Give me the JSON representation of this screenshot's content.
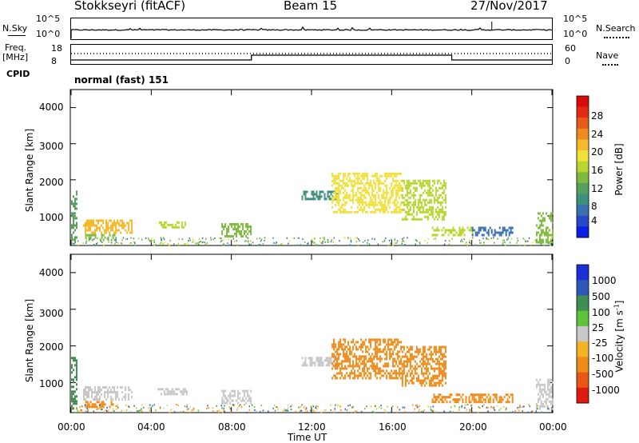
{
  "header": {
    "station": "Stokkseyri (fitACF)",
    "beam": "Beam 15",
    "date": "27/Nov/2017"
  },
  "strip": {
    "nsky_label": "N.Sky",
    "nsky_ticks": [
      "10^5",
      "10^0"
    ],
    "nsearch_label": "N.Search",
    "nsearch_ticks": [
      "10^5",
      "10^0"
    ],
    "freq_label": "Freq.",
    "freq_unit": "[MHz]",
    "freq_ticks": [
      "18",
      "8"
    ],
    "nave_label": "Nave",
    "nave_ticks": [
      "60",
      "0"
    ],
    "cpid_label": "CPID",
    "cpid_value": "normal (fast) 151"
  },
  "chart_data": [
    {
      "type": "heatmap",
      "name": "power",
      "ylabel": "Slant Range [km]",
      "ylim": [
        180,
        4500
      ],
      "yticks": [
        "4000",
        "3000",
        "2000",
        "1000"
      ],
      "ytick_values": [
        4000,
        3000,
        2000,
        1000
      ],
      "xlabel": "",
      "xlim": [
        0,
        24
      ],
      "colorbar": {
        "label": "Power [dB]",
        "ticks": [
          "28",
          "24",
          "20",
          "16",
          "12",
          "8",
          "4"
        ],
        "colors": [
          "#0b1fe6",
          "#2547c8",
          "#3a6fb2",
          "#3f8f7e",
          "#55a05c",
          "#7dbb3e",
          "#b9d62f",
          "#f2e03a",
          "#f6b92c",
          "#ee8a1f",
          "#e85a17",
          "#e22b12",
          "#d90c0c"
        ]
      },
      "patches": [
        {
          "t0": 0.0,
          "t1": 0.3,
          "r0": 300,
          "r1": 1700,
          "v": 10
        },
        {
          "t0": 0.6,
          "t1": 3.0,
          "r0": 550,
          "r1": 900,
          "v": 20
        },
        {
          "t0": 0.7,
          "t1": 2.2,
          "r0": 350,
          "r1": 500,
          "v": 12
        },
        {
          "t0": 4.3,
          "t1": 5.8,
          "r0": 700,
          "r1": 850,
          "v": 14
        },
        {
          "t0": 7.5,
          "t1": 9.0,
          "r0": 450,
          "r1": 800,
          "v": 12
        },
        {
          "t0": 11.5,
          "t1": 13.3,
          "r0": 1500,
          "r1": 1700,
          "v": 8
        },
        {
          "t0": 13.0,
          "t1": 16.5,
          "r0": 1100,
          "r1": 2200,
          "v": 18
        },
        {
          "t0": 16.5,
          "t1": 18.7,
          "r0": 900,
          "r1": 2000,
          "v": 14
        },
        {
          "t0": 18.0,
          "t1": 20.0,
          "r0": 450,
          "r1": 700,
          "v": 16
        },
        {
          "t0": 20.0,
          "t1": 22.0,
          "r0": 450,
          "r1": 700,
          "v": 6
        },
        {
          "t0": 23.2,
          "t1": 24.0,
          "r0": 300,
          "r1": 1100,
          "v": 12
        }
      ]
    },
    {
      "type": "heatmap",
      "name": "velocity",
      "ylabel": "Slant Range [km]",
      "ylim": [
        180,
        4500
      ],
      "yticks": [
        "4000",
        "3000",
        "2000",
        "1000"
      ],
      "ytick_values": [
        4000,
        3000,
        2000,
        1000
      ],
      "xlabel": "Time UT",
      "xlim": [
        0,
        24
      ],
      "xticks": [
        "00:00",
        "04:00",
        "08:00",
        "12:00",
        "16:00",
        "20:00",
        "00:00"
      ],
      "xtick_values": [
        0,
        4,
        8,
        12,
        16,
        20,
        24
      ],
      "colorbar": {
        "label": "Velocity [m s",
        "label_sup": "-1",
        "label_end": "]",
        "ticks": [
          "1000",
          "500",
          "100",
          "25",
          "-25",
          "-100",
          "-500",
          "-1000"
        ],
        "colors": [
          "#1a2fd6",
          "#2d57b8",
          "#3f8f52",
          "#5fc23b",
          "#c8c8c8",
          "#f4b324",
          "#f08a18",
          "#ea5614",
          "#e01a10"
        ]
      },
      "patches": [
        {
          "t0": 0.0,
          "t1": 0.3,
          "r0": 300,
          "r1": 1700,
          "v": 100
        },
        {
          "t0": 0.6,
          "t1": 3.0,
          "r0": 550,
          "r1": 900,
          "v": 0
        },
        {
          "t0": 0.7,
          "t1": 2.2,
          "r0": 350,
          "r1": 500,
          "v": -150
        },
        {
          "t0": 4.3,
          "t1": 5.8,
          "r0": 700,
          "r1": 850,
          "v": 0
        },
        {
          "t0": 7.5,
          "t1": 9.0,
          "r0": 450,
          "r1": 800,
          "v": 0
        },
        {
          "t0": 11.5,
          "t1": 13.3,
          "r0": 1500,
          "r1": 1700,
          "v": 0
        },
        {
          "t0": 13.0,
          "t1": 16.5,
          "r0": 1100,
          "r1": 2200,
          "v": -200
        },
        {
          "t0": 16.5,
          "t1": 18.7,
          "r0": 900,
          "r1": 2000,
          "v": -300
        },
        {
          "t0": 18.0,
          "t1": 20.0,
          "r0": 450,
          "r1": 700,
          "v": -400
        },
        {
          "t0": 20.0,
          "t1": 22.0,
          "r0": 450,
          "r1": 700,
          "v": -300
        },
        {
          "t0": 23.2,
          "t1": 24.0,
          "r0": 300,
          "r1": 1100,
          "v": 0
        }
      ]
    }
  ]
}
